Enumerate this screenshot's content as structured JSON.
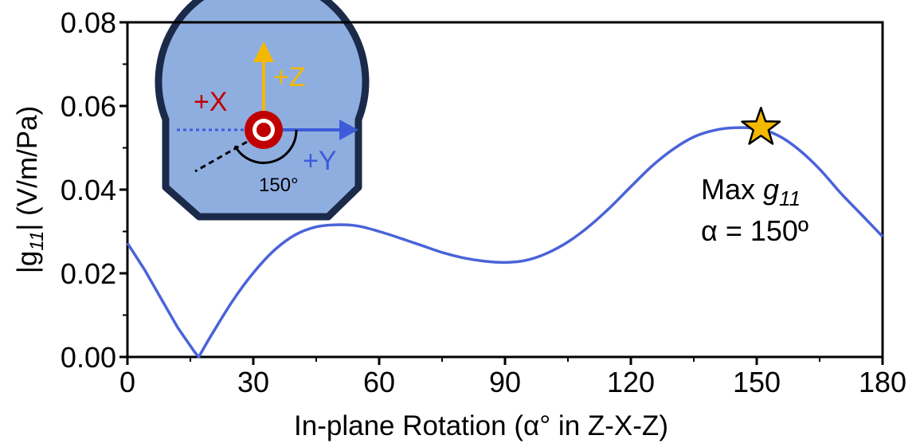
{
  "chart_data": {
    "type": "line",
    "title": "",
    "xlabel": "In-plane Rotation (α° in Z-X-Z)",
    "ylabel_parts": {
      "prefix": "|g",
      "subscript": "11",
      "suffix": "| (V/m/Pa)"
    },
    "xlim": [
      0,
      180
    ],
    "ylim": [
      0,
      0.08
    ],
    "x_ticks": [
      0,
      30,
      60,
      90,
      120,
      150,
      180
    ],
    "x_tick_labels": [
      "0",
      "30",
      "60",
      "90",
      "120",
      "150",
      "180"
    ],
    "y_ticks": [
      0,
      0.02,
      0.04,
      0.06,
      0.08
    ],
    "y_tick_labels": [
      "0.00",
      "0.02",
      "0.04",
      "0.06",
      "0.08"
    ],
    "grid": false,
    "series": [
      {
        "color": "#4a63d8",
        "x": [
          0,
          4,
          8,
          12,
          16,
          17,
          20,
          25,
          30,
          35,
          40,
          45,
          50,
          55,
          60,
          65,
          70,
          75,
          80,
          85,
          90,
          95,
          100,
          105,
          110,
          115,
          120,
          125,
          130,
          135,
          140,
          145,
          150,
          155,
          160,
          165,
          170,
          175,
          180
        ],
        "y": [
          0.0272,
          0.021,
          0.014,
          0.007,
          0.0012,
          0.0,
          0.0052,
          0.0133,
          0.0201,
          0.0255,
          0.0292,
          0.0311,
          0.0316,
          0.0313,
          0.03,
          0.0284,
          0.0267,
          0.025,
          0.0237,
          0.0229,
          0.0226,
          0.0231,
          0.0248,
          0.0275,
          0.0312,
          0.0357,
          0.0407,
          0.0456,
          0.0496,
          0.0526,
          0.0542,
          0.0548,
          0.0546,
          0.053,
          0.0496,
          0.0449,
          0.0392,
          0.034,
          0.0288
        ]
      }
    ],
    "annotations": {
      "max_marker": {
        "x": 151,
        "y": 0.0548,
        "shape": "star",
        "color": "#f5b800"
      },
      "max_label_prefix": "Max ",
      "max_label_g": "g",
      "max_label_sub": "11",
      "alpha_label": "α = 150º"
    },
    "inset": {
      "plus_x": "+X",
      "plus_z": "+Z",
      "plus_y": "+Y",
      "angle_label": "150°",
      "fill_color": "#8faee0",
      "outline_color": "#1c2a4a",
      "x_color": "#c00000",
      "y_color": "#3d5bd9",
      "z_color": "#f5b800"
    }
  }
}
